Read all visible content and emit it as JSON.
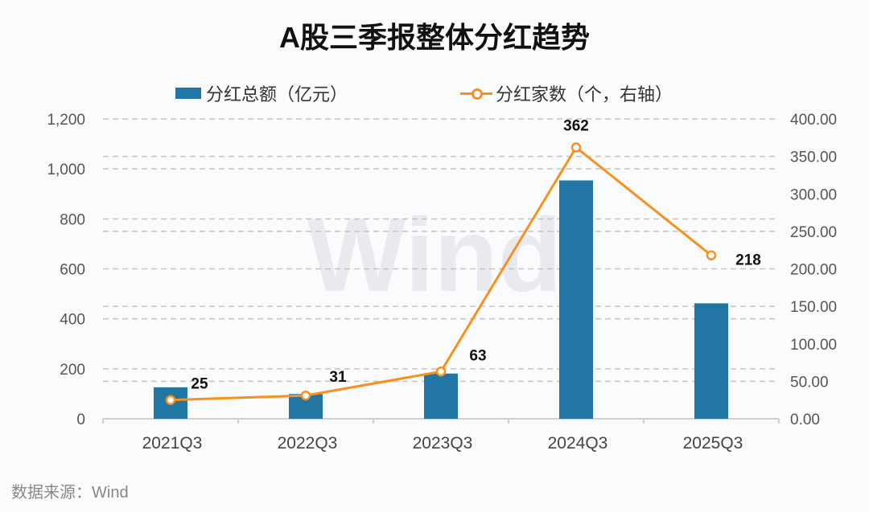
{
  "chart_data": {
    "type": "bar+line",
    "title": "A股三季报整体分红趋势",
    "categories": [
      "2021Q3",
      "2022Q3",
      "2023Q3",
      "2024Q3",
      "2025Q3"
    ],
    "series": [
      {
        "name": "分红总额（亿元）",
        "type": "bar",
        "axis": "left",
        "values": [
          126,
          99,
          181,
          954,
          462
        ],
        "color": "#2176a3"
      },
      {
        "name": "分红家数（个，右轴）",
        "type": "line",
        "axis": "right",
        "values": [
          25,
          31,
          63,
          362,
          218
        ],
        "data_labels": [
          "25",
          "31",
          "63",
          "362",
          "218"
        ],
        "color": "#f7901e"
      }
    ],
    "y_left": {
      "ylim": [
        0,
        1200
      ],
      "ticks": [
        "0",
        "200",
        "400",
        "600",
        "800",
        "1,000",
        "1,200"
      ]
    },
    "y_right": {
      "ylim": [
        0,
        400
      ],
      "ticks": [
        "0.00",
        "50.00",
        "100.00",
        "150.00",
        "200.00",
        "250.00",
        "300.00",
        "350.00",
        "400.00"
      ]
    },
    "grid": true,
    "legend_position": "top",
    "watermark": "Wind",
    "source": "数据来源：Wind"
  }
}
